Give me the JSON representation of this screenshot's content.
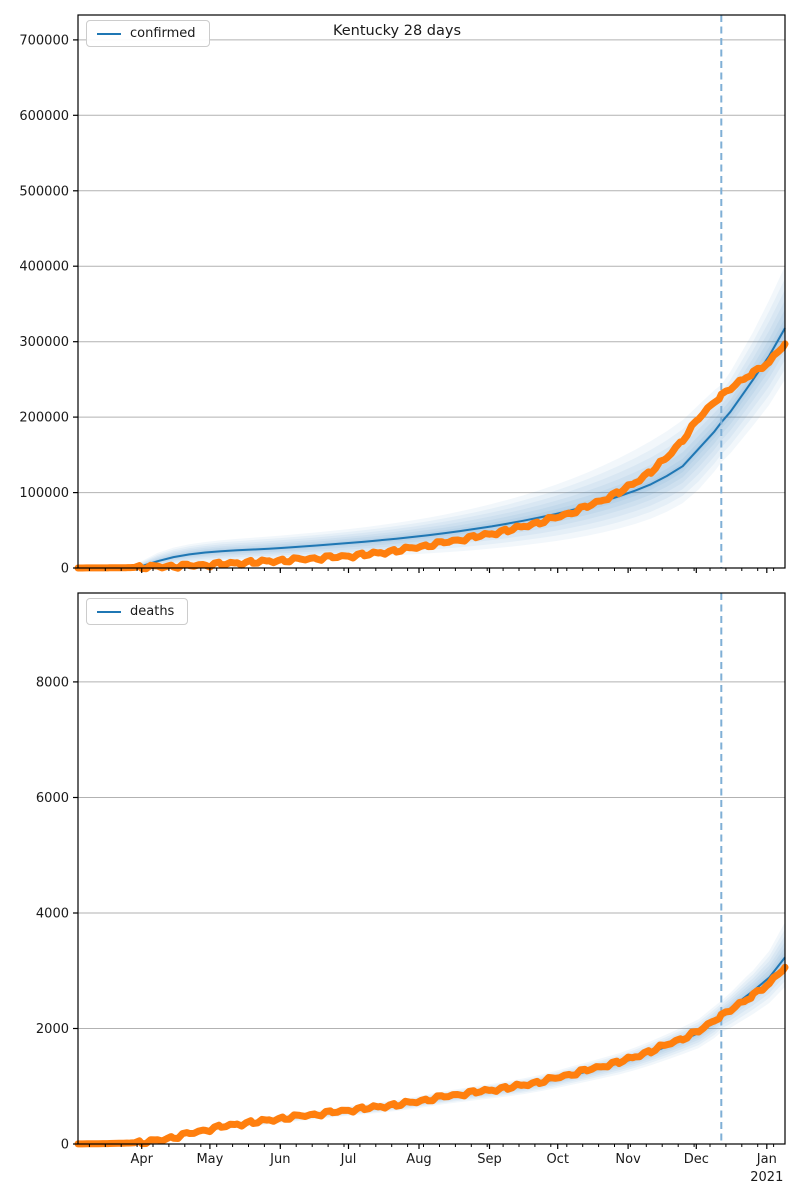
{
  "title": "Kentucky 28 days",
  "colors": {
    "predicted": "#1f77b4",
    "actual": "#ff7f0e",
    "band": "#1f77b4",
    "cutoff_line": "#7fafd6",
    "grid": "#b2b2b2",
    "spine": "#000000",
    "text": "#1a1a1a"
  },
  "cutoff_day": 283,
  "x_axis": {
    "start_date": "2020-03-04",
    "domain_days": [
      0,
      311
    ],
    "minor_tick_interval_days": 7,
    "year_label": "2021",
    "months": [
      {
        "label": "Apr",
        "day": 28
      },
      {
        "label": "May",
        "day": 58
      },
      {
        "label": "Jun",
        "day": 89
      },
      {
        "label": "Jul",
        "day": 119
      },
      {
        "label": "Aug",
        "day": 150
      },
      {
        "label": "Sep",
        "day": 181
      },
      {
        "label": "Oct",
        "day": 211
      },
      {
        "label": "Nov",
        "day": 242
      },
      {
        "label": "Dec",
        "day": 272
      },
      {
        "label": "Jan",
        "day": 303
      }
    ]
  },
  "chart_data": [
    {
      "type": "line",
      "name": "confirmed",
      "legend_label": "confirmed",
      "title": "Kentucky 28 days",
      "legend_position": "upper left",
      "grid": "horizontal",
      "ylim": [
        0,
        733000
      ],
      "yticks": [
        0,
        100000,
        200000,
        300000,
        400000,
        500000,
        600000,
        700000
      ],
      "days": [
        0,
        7,
        14,
        21,
        28,
        35,
        42,
        49,
        56,
        63,
        70,
        77,
        84,
        91,
        98,
        105,
        112,
        119,
        126,
        133,
        140,
        147,
        154,
        161,
        168,
        175,
        182,
        189,
        196,
        203,
        210,
        217,
        224,
        231,
        238,
        245,
        252,
        259,
        266,
        273,
        280,
        283,
        287,
        294,
        297,
        304,
        311
      ],
      "series": {
        "actual": [
          50,
          100,
          200,
          400,
          800,
          1700,
          2400,
          3100,
          4100,
          5300,
          6500,
          7700,
          8800,
          10100,
          11500,
          12900,
          14300,
          15900,
          17700,
          20000,
          23000,
          26500,
          30000,
          33800,
          37500,
          41500,
          45500,
          50000,
          55000,
          60500,
          66500,
          73500,
          81500,
          90500,
          100500,
          113000,
          128000,
          146000,
          170000,
          198000,
          221000,
          229000,
          238000,
          253000,
          259000,
          273000,
          297000
        ],
        "predicted": [
          0,
          0,
          100,
          500,
          2500,
          9000,
          14500,
          18000,
          20500,
          22200,
          23400,
          24500,
          25600,
          26900,
          28300,
          29800,
          31400,
          33100,
          34900,
          36800,
          38900,
          41100,
          43500,
          46100,
          48900,
          51900,
          55200,
          58800,
          62700,
          66900,
          71500,
          76600,
          82200,
          88300,
          95000,
          102500,
          111000,
          122000,
          135000,
          158000,
          181000,
          193000,
          207000,
          237000,
          250000,
          281000,
          318000
        ],
        "band_lo": [
          0,
          0,
          0,
          0,
          0,
          1500,
          4000,
          6000,
          7500,
          8500,
          9200,
          9800,
          10400,
          11000,
          11600,
          12300,
          13000,
          13800,
          14700,
          15700,
          16800,
          18000,
          19300,
          20700,
          22200,
          23900,
          25800,
          27900,
          30200,
          32800,
          35700,
          39000,
          42800,
          47200,
          52300,
          58300,
          65500,
          74500,
          86000,
          104000,
          128000,
          140000,
          152000,
          178000,
          189000,
          216000,
          250000
        ],
        "band_hi": [
          200,
          400,
          900,
          2500,
          9000,
          20000,
          27000,
          31500,
          34500,
          36800,
          38600,
          40200,
          41800,
          43500,
          45300,
          47200,
          49300,
          51600,
          54100,
          56800,
          59800,
          63100,
          66700,
          70700,
          75000,
          79700,
          84800,
          90400,
          96500,
          103000,
          110200,
          118000,
          126500,
          135700,
          145700,
          156500,
          168300,
          181300,
          196000,
          216000,
          236000,
          243000,
          260000,
          297000,
          313000,
          355000,
          400000
        ]
      }
    },
    {
      "type": "line",
      "name": "deaths",
      "legend_label": "deaths",
      "legend_position": "upper left",
      "grid": "horizontal",
      "ylim": [
        0,
        9540
      ],
      "yticks": [
        0,
        2000,
        4000,
        6000,
        8000
      ],
      "days": [
        0,
        7,
        14,
        21,
        28,
        35,
        42,
        49,
        56,
        63,
        70,
        77,
        84,
        91,
        98,
        105,
        112,
        119,
        126,
        133,
        140,
        147,
        154,
        161,
        168,
        175,
        182,
        189,
        196,
        203,
        210,
        217,
        224,
        231,
        238,
        245,
        252,
        259,
        266,
        273,
        280,
        283,
        287,
        294,
        297,
        304,
        311
      ],
      "series": {
        "actual": [
          2,
          4,
          8,
          15,
          25,
          60,
          115,
          180,
          240,
          300,
          340,
          375,
          410,
          450,
          485,
          515,
          550,
          585,
          615,
          645,
          680,
          720,
          770,
          820,
          860,
          900,
          935,
          975,
          1020,
          1075,
          1140,
          1210,
          1280,
          1350,
          1420,
          1510,
          1610,
          1720,
          1830,
          1950,
          2150,
          2230,
          2320,
          2500,
          2580,
          2780,
          3060
        ],
        "predicted": [
          0,
          2,
          5,
          10,
          22,
          55,
          110,
          175,
          235,
          292,
          333,
          368,
          402,
          440,
          475,
          506,
          540,
          574,
          604,
          634,
          668,
          708,
          756,
          805,
          845,
          884,
          920,
          960,
          1005,
          1058,
          1120,
          1188,
          1256,
          1325,
          1395,
          1482,
          1580,
          1688,
          1800,
          1920,
          2120,
          2240,
          2350,
          2560,
          2650,
          2880,
          3230
        ],
        "band_lo": [
          0,
          0,
          0,
          0,
          5,
          35,
          85,
          140,
          195,
          245,
          280,
          310,
          340,
          373,
          403,
          430,
          460,
          490,
          515,
          542,
          571,
          606,
          648,
          690,
          725,
          759,
          790,
          825,
          864,
          910,
          964,
          1023,
          1082,
          1142,
          1203,
          1279,
          1364,
          1458,
          1556,
          1660,
          1835,
          1940,
          2010,
          2180,
          2250,
          2440,
          2720
        ],
        "band_hi": [
          5,
          8,
          14,
          25,
          45,
          85,
          145,
          215,
          280,
          340,
          385,
          425,
          462,
          505,
          543,
          578,
          617,
          655,
          688,
          722,
          760,
          805,
          858,
          913,
          957,
          1000,
          1040,
          1085,
          1136,
          1195,
          1264,
          1341,
          1417,
          1494,
          1572,
          1670,
          1780,
          1901,
          2026,
          2160,
          2385,
          2480,
          2620,
          2900,
          3010,
          3340,
          3840
        ]
      }
    }
  ]
}
